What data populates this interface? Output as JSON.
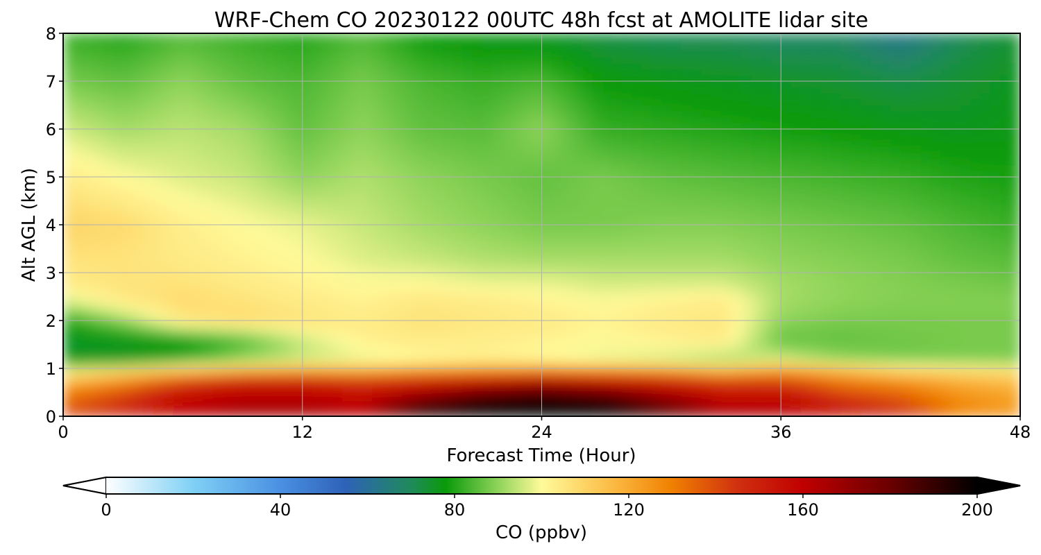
{
  "chart_data": {
    "type": "heatmap",
    "title": "WRF-Chem CO  20230122 00UTC 48h fcst at AMOLITE lidar site",
    "xlabel": "Forecast Time (Hour)",
    "ylabel": "Alt AGL (km)",
    "xlim": [
      0,
      48
    ],
    "ylim": [
      0,
      8
    ],
    "xticks": [
      0,
      12,
      24,
      36,
      48
    ],
    "yticks": [
      0,
      1,
      2,
      3,
      4,
      5,
      6,
      7,
      8
    ],
    "grid": true,
    "z_label": "CO  (ppbv)",
    "colorbar": {
      "label": "CO  (ppbv)",
      "range": [
        0,
        200
      ],
      "ticks": [
        0,
        40,
        80,
        120,
        160,
        200
      ],
      "extend": "both",
      "orientation": "horizontal",
      "colors": [
        {
          "value": 0,
          "color": "#ffffff"
        },
        {
          "value": 20,
          "color": "#7fd0f5"
        },
        {
          "value": 40,
          "color": "#4a90e2"
        },
        {
          "value": 55,
          "color": "#2e62b8"
        },
        {
          "value": 70,
          "color": "#1f8a5a"
        },
        {
          "value": 78,
          "color": "#0a9a0a"
        },
        {
          "value": 90,
          "color": "#8fd45a"
        },
        {
          "value": 100,
          "color": "#fffa9a"
        },
        {
          "value": 115,
          "color": "#fcc04a"
        },
        {
          "value": 130,
          "color": "#f08000"
        },
        {
          "value": 145,
          "color": "#d03010"
        },
        {
          "value": 160,
          "color": "#c00000"
        },
        {
          "value": 180,
          "color": "#6a0000"
        },
        {
          "value": 200,
          "color": "#000000"
        }
      ]
    },
    "x_hours": [
      0,
      3,
      6,
      9,
      12,
      15,
      18,
      21,
      24,
      27,
      30,
      33,
      36,
      39,
      42,
      45,
      48
    ],
    "z_km": [
      0,
      0.25,
      0.5,
      0.75,
      0.95,
      1.2,
      1.6,
      2.0,
      2.4,
      2.8,
      3.3,
      4.0,
      5.0,
      6.0,
      7.0,
      8.0
    ],
    "values_ppbv": [
      [
        140,
        150,
        160,
        165,
        165,
        160,
        195,
        200,
        200,
        200,
        185,
        165,
        165,
        160,
        150,
        130,
        125
      ],
      [
        135,
        145,
        160,
        165,
        165,
        160,
        185,
        198,
        200,
        198,
        180,
        162,
        160,
        150,
        140,
        128,
        122
      ],
      [
        130,
        140,
        155,
        160,
        160,
        155,
        165,
        178,
        185,
        178,
        165,
        155,
        155,
        140,
        135,
        125,
        120
      ],
      [
        115,
        125,
        140,
        150,
        150,
        145,
        150,
        155,
        160,
        155,
        150,
        142,
        140,
        130,
        125,
        118,
        115
      ],
      [
        100,
        108,
        115,
        120,
        122,
        120,
        125,
        128,
        130,
        128,
        125,
        118,
        125,
        118,
        110,
        108,
        105
      ],
      [
        76,
        76,
        80,
        90,
        95,
        98,
        100,
        102,
        100,
        98,
        96,
        92,
        96,
        90,
        88,
        88,
        88
      ],
      [
        75,
        76,
        78,
        84,
        95,
        102,
        104,
        103,
        102,
        100,
        102,
        104,
        86,
        86,
        87,
        88,
        88
      ],
      [
        80,
        90,
        105,
        108,
        106,
        104,
        106,
        105,
        104,
        102,
        104,
        105,
        90,
        88,
        88,
        88,
        88
      ],
      [
        96,
        104,
        108,
        106,
        104,
        102,
        105,
        104,
        102,
        100,
        102,
        104,
        92,
        90,
        89,
        89,
        89
      ],
      [
        104,
        106,
        106,
        104,
        102,
        100,
        100,
        98,
        98,
        96,
        96,
        96,
        92,
        90,
        89,
        88,
        87
      ],
      [
        106,
        106,
        104,
        102,
        100,
        97,
        95,
        93,
        92,
        92,
        92,
        92,
        90,
        89,
        88,
        86,
        85
      ],
      [
        110,
        108,
        103,
        100,
        98,
        95,
        92,
        90,
        88,
        88,
        89,
        89,
        88,
        87,
        86,
        84,
        82
      ],
      [
        104,
        100,
        97,
        95,
        90,
        93,
        90,
        88,
        86,
        88,
        86,
        85,
        84,
        83,
        82,
        80,
        79
      ],
      [
        96,
        92,
        94,
        92,
        86,
        90,
        86,
        85,
        90,
        82,
        81,
        80,
        79,
        78,
        77,
        76,
        77
      ],
      [
        88,
        86,
        90,
        86,
        84,
        88,
        84,
        82,
        84,
        78,
        77,
        76,
        75,
        74,
        72,
        74,
        76
      ],
      [
        82,
        80,
        84,
        82,
        80,
        84,
        78,
        76,
        75,
        72,
        70,
        70,
        68,
        68,
        62,
        70,
        74
      ]
    ]
  }
}
